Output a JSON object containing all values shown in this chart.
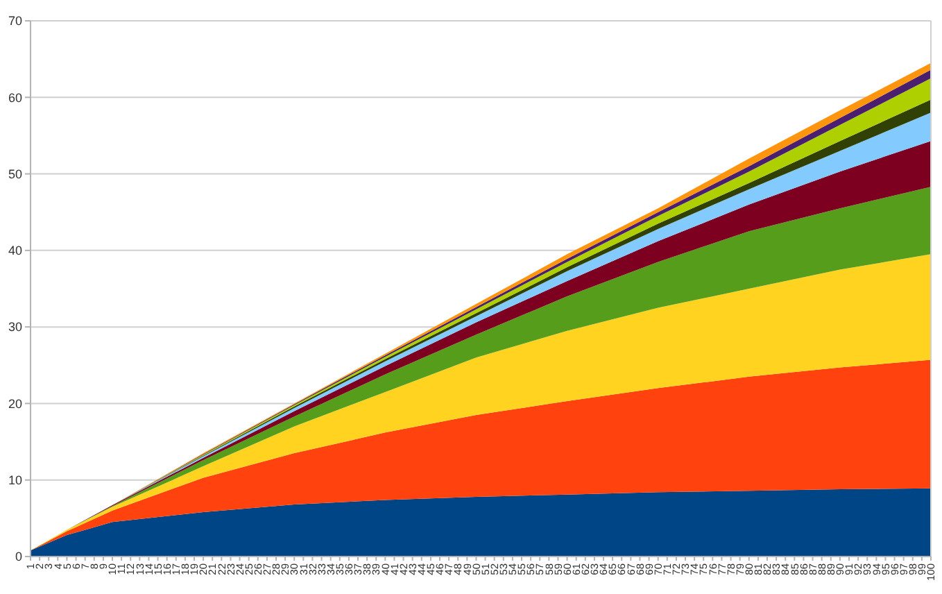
{
  "chart_data": {
    "type": "area",
    "stacked": true,
    "grid": "y",
    "x": [
      1,
      5,
      10,
      20,
      30,
      40,
      50,
      60,
      70,
      80,
      90,
      100
    ],
    "xlim": [
      1,
      100
    ],
    "xticks": [
      1,
      2,
      3,
      4,
      5,
      6,
      7,
      8,
      9,
      10,
      11,
      12,
      13,
      14,
      15,
      16,
      17,
      18,
      19,
      20,
      21,
      22,
      23,
      24,
      25,
      26,
      27,
      28,
      29,
      30,
      31,
      32,
      33,
      34,
      35,
      36,
      37,
      38,
      39,
      40,
      41,
      42,
      43,
      44,
      45,
      46,
      47,
      48,
      49,
      50,
      51,
      52,
      53,
      54,
      55,
      56,
      57,
      58,
      59,
      60,
      61,
      62,
      63,
      64,
      65,
      66,
      67,
      68,
      69,
      70,
      71,
      72,
      73,
      74,
      75,
      76,
      77,
      78,
      79,
      80,
      81,
      82,
      83,
      84,
      85,
      86,
      87,
      88,
      89,
      90,
      91,
      92,
      93,
      94,
      95,
      96,
      97,
      98,
      99,
      100
    ],
    "ylim": [
      0,
      70
    ],
    "yticks": [
      0,
      10,
      20,
      30,
      40,
      50,
      60,
      70
    ],
    "series": [
      {
        "color": "#004586",
        "values": [
          0.8,
          2.8,
          4.5,
          5.8,
          6.8,
          7.4,
          7.8,
          8.1,
          8.4,
          8.6,
          8.8,
          8.9
        ]
      },
      {
        "color": "#ff420e",
        "values": [
          0,
          0.5,
          1.5,
          4.5,
          6.7,
          8.8,
          10.7,
          12.2,
          13.6,
          14.9,
          15.9,
          16.8
        ]
      },
      {
        "color": "#ffd320",
        "values": [
          0,
          0.2,
          0.5,
          1.5,
          3.5,
          5.3,
          7.5,
          9.2,
          10.5,
          11.5,
          12.8,
          13.8
        ]
      },
      {
        "color": "#579d1c",
        "values": [
          0,
          0,
          0.1,
          0.8,
          1.3,
          2.3,
          3.0,
          4.5,
          6.0,
          7.5,
          8.0,
          8.8
        ]
      },
      {
        "color": "#7e0021",
        "values": [
          0,
          0,
          0.1,
          0.3,
          0.7,
          1.1,
          1.6,
          2.0,
          2.7,
          3.5,
          4.8,
          6.0
        ]
      },
      {
        "color": "#83caff",
        "values": [
          0,
          0,
          0,
          0.2,
          0.4,
          0.6,
          0.8,
          1.3,
          1.6,
          2.0,
          2.7,
          3.7
        ]
      },
      {
        "color": "#314004",
        "values": [
          0,
          0,
          0,
          0.1,
          0.2,
          0.3,
          0.4,
          0.5,
          0.7,
          0.8,
          1.3,
          1.7
        ]
      },
      {
        "color": "#aecf00",
        "values": [
          0,
          0,
          0,
          0.1,
          0.2,
          0.3,
          0.5,
          0.7,
          1.0,
          1.5,
          2.1,
          2.8
        ]
      },
      {
        "color": "#4b1f6f",
        "values": [
          0,
          0,
          0,
          0.1,
          0.1,
          0.2,
          0.3,
          0.4,
          0.5,
          0.7,
          0.9,
          1.1
        ]
      },
      {
        "color": "#ff950e",
        "values": [
          0,
          0,
          0,
          0.1,
          0.1,
          0.2,
          0.4,
          0.6,
          0.5,
          1.0,
          1.0,
          0.9
        ]
      }
    ]
  }
}
